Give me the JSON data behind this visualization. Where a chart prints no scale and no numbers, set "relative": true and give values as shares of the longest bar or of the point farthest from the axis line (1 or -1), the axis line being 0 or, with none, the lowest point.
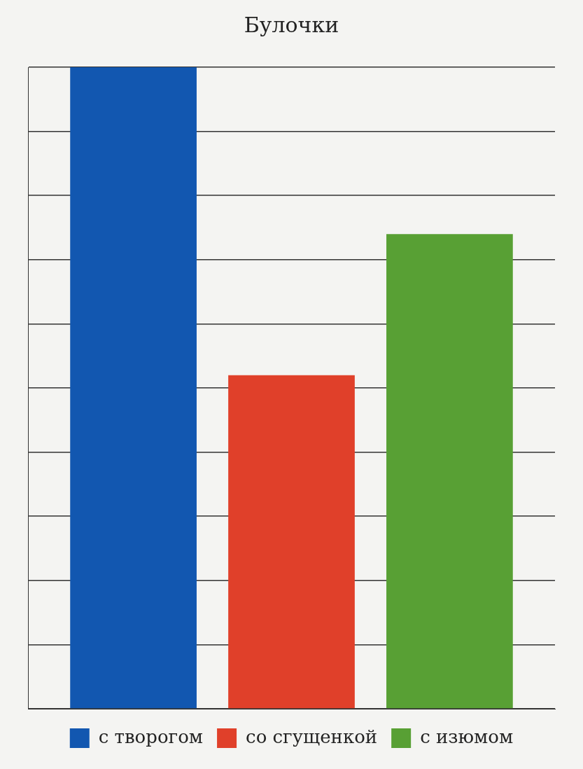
{
  "chart_data": {
    "type": "bar",
    "title": "Булочки",
    "categories": [
      null
    ],
    "relative": true,
    "grid": "y",
    "legend": "bottom",
    "series": [
      {
        "name": "с творогом",
        "color": "#1257b0",
        "values": [
          1
        ]
      },
      {
        "name": "со сгущенкой",
        "color": "#e0402a",
        "values": [
          0.52
        ]
      },
      {
        "name": "с изюмом",
        "color": "#58a034",
        "values": [
          0.74
        ]
      }
    ]
  }
}
